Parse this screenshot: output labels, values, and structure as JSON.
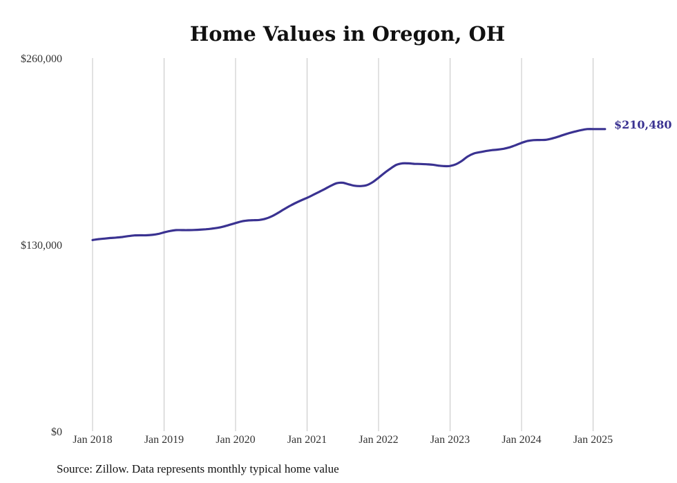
{
  "chart_data": {
    "type": "line",
    "title": "Home Values in Oregon, OH",
    "source": "Source: Zillow. Data represents monthly typical home value",
    "x_tick_labels": [
      "Jan 2018",
      "Jan 2019",
      "Jan 2020",
      "Jan 2021",
      "Jan 2022",
      "Jan 2023",
      "Jan 2024",
      "Jan 2025"
    ],
    "y_tick_labels": [
      "$0",
      "$130,000",
      "$260,000"
    ],
    "y_ticks": [
      0,
      130000,
      260000
    ],
    "ylim": [
      0,
      260000
    ],
    "xlim": [
      "2018-01",
      "2025-03"
    ],
    "grid": "vertical at each January",
    "line_color": "#3a3291",
    "end_label": "$210,480",
    "series": [
      {
        "x": [
          "2018-01",
          "2018-02",
          "2018-03",
          "2018-04",
          "2018-05",
          "2018-06",
          "2018-07",
          "2018-08",
          "2018-09",
          "2018-10",
          "2018-11",
          "2018-12",
          "2019-01",
          "2019-02",
          "2019-03",
          "2019-04",
          "2019-05",
          "2019-06",
          "2019-07",
          "2019-08",
          "2019-09",
          "2019-10",
          "2019-11",
          "2019-12",
          "2020-01",
          "2020-02",
          "2020-03",
          "2020-04",
          "2020-05",
          "2020-06",
          "2020-07",
          "2020-08",
          "2020-09",
          "2020-10",
          "2020-11",
          "2020-12",
          "2021-01",
          "2021-02",
          "2021-03",
          "2021-04",
          "2021-05",
          "2021-06",
          "2021-07",
          "2021-08",
          "2021-09",
          "2021-10",
          "2021-11",
          "2021-12",
          "2022-01",
          "2022-02",
          "2022-03",
          "2022-04",
          "2022-05",
          "2022-06",
          "2022-07",
          "2022-08",
          "2022-09",
          "2022-10",
          "2022-11",
          "2022-12",
          "2023-01",
          "2023-02",
          "2023-03",
          "2023-04",
          "2023-05",
          "2023-06",
          "2023-07",
          "2023-08",
          "2023-09",
          "2023-10",
          "2023-11",
          "2023-12",
          "2024-01",
          "2024-02",
          "2024-03",
          "2024-04",
          "2024-05",
          "2024-06",
          "2024-07",
          "2024-08",
          "2024-09",
          "2024-10",
          "2024-11",
          "2024-12",
          "2025-01",
          "2025-02",
          "2025-03"
        ],
        "values": [
          133200,
          133800,
          134200,
          134600,
          134900,
          135300,
          135900,
          136400,
          136500,
          136500,
          136800,
          137400,
          138500,
          139500,
          140100,
          140100,
          140100,
          140200,
          140400,
          140700,
          141100,
          141700,
          142600,
          143800,
          145000,
          146200,
          146800,
          147000,
          147200,
          148000,
          149600,
          151800,
          154300,
          156700,
          158900,
          160800,
          162600,
          164600,
          166700,
          168800,
          171000,
          172800,
          173100,
          172000,
          171000,
          170800,
          171400,
          173500,
          176600,
          180000,
          183000,
          185600,
          186600,
          186600,
          186300,
          186200,
          186000,
          185700,
          185100,
          184700,
          184800,
          186000,
          188400,
          191500,
          193500,
          194400,
          195200,
          195800,
          196200,
          196800,
          197800,
          199300,
          200900,
          202200,
          202800,
          202900,
          203000,
          203800,
          205000,
          206400,
          207700,
          208800,
          209800,
          210480,
          210480,
          210480,
          210480
        ]
      }
    ]
  }
}
